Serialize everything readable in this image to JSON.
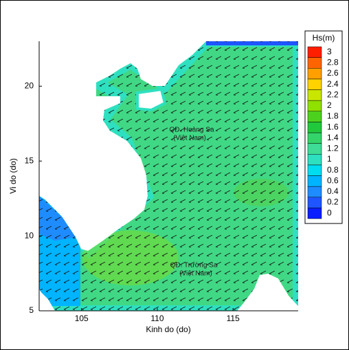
{
  "chart_data": {
    "type": "contour",
    "xlabel": "Kinh do (do)",
    "ylabel": "Vi do (do)",
    "xlim": [
      102.2,
      119.3
    ],
    "ylim": [
      5,
      23
    ],
    "xticks": [
      105,
      110,
      115
    ],
    "yticks": [
      5,
      10,
      15,
      20
    ],
    "annotations": [
      "QĐ. Hoàng Sa",
      "(Việt Nam)",
      "QĐ. Trường Sa",
      "(Việt Nam)"
    ],
    "colorbar": {
      "title": "Hs(m)",
      "ticks": [
        0,
        0.2,
        0.4,
        0.6,
        0.8,
        1,
        1.2,
        1.4,
        1.6,
        1.8,
        2,
        2.2,
        2.4,
        2.6,
        2.8,
        3
      ],
      "colors": [
        "#0a1eff",
        "#1f55ff",
        "#1e8cff",
        "#00b4ff",
        "#00dcf0",
        "#2ee0c0",
        "#3edc96",
        "#34d46a",
        "#22c83c",
        "#4cd21e",
        "#90e000",
        "#c8e600",
        "#ffd200",
        "#ffa000",
        "#ff6400",
        "#ff1e00"
      ]
    }
  }
}
